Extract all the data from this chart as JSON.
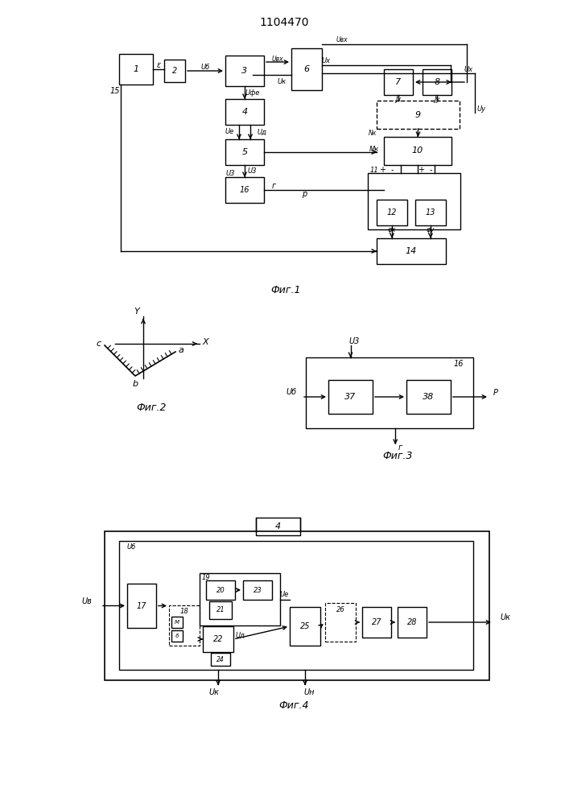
{
  "title": "1104470",
  "bg": "#ffffff",
  "fig1_caption": "Фиг.1",
  "fig2_caption": "Фиг.2",
  "fig3_caption": "Фиг.3",
  "fig4_caption": "Фиг.4"
}
